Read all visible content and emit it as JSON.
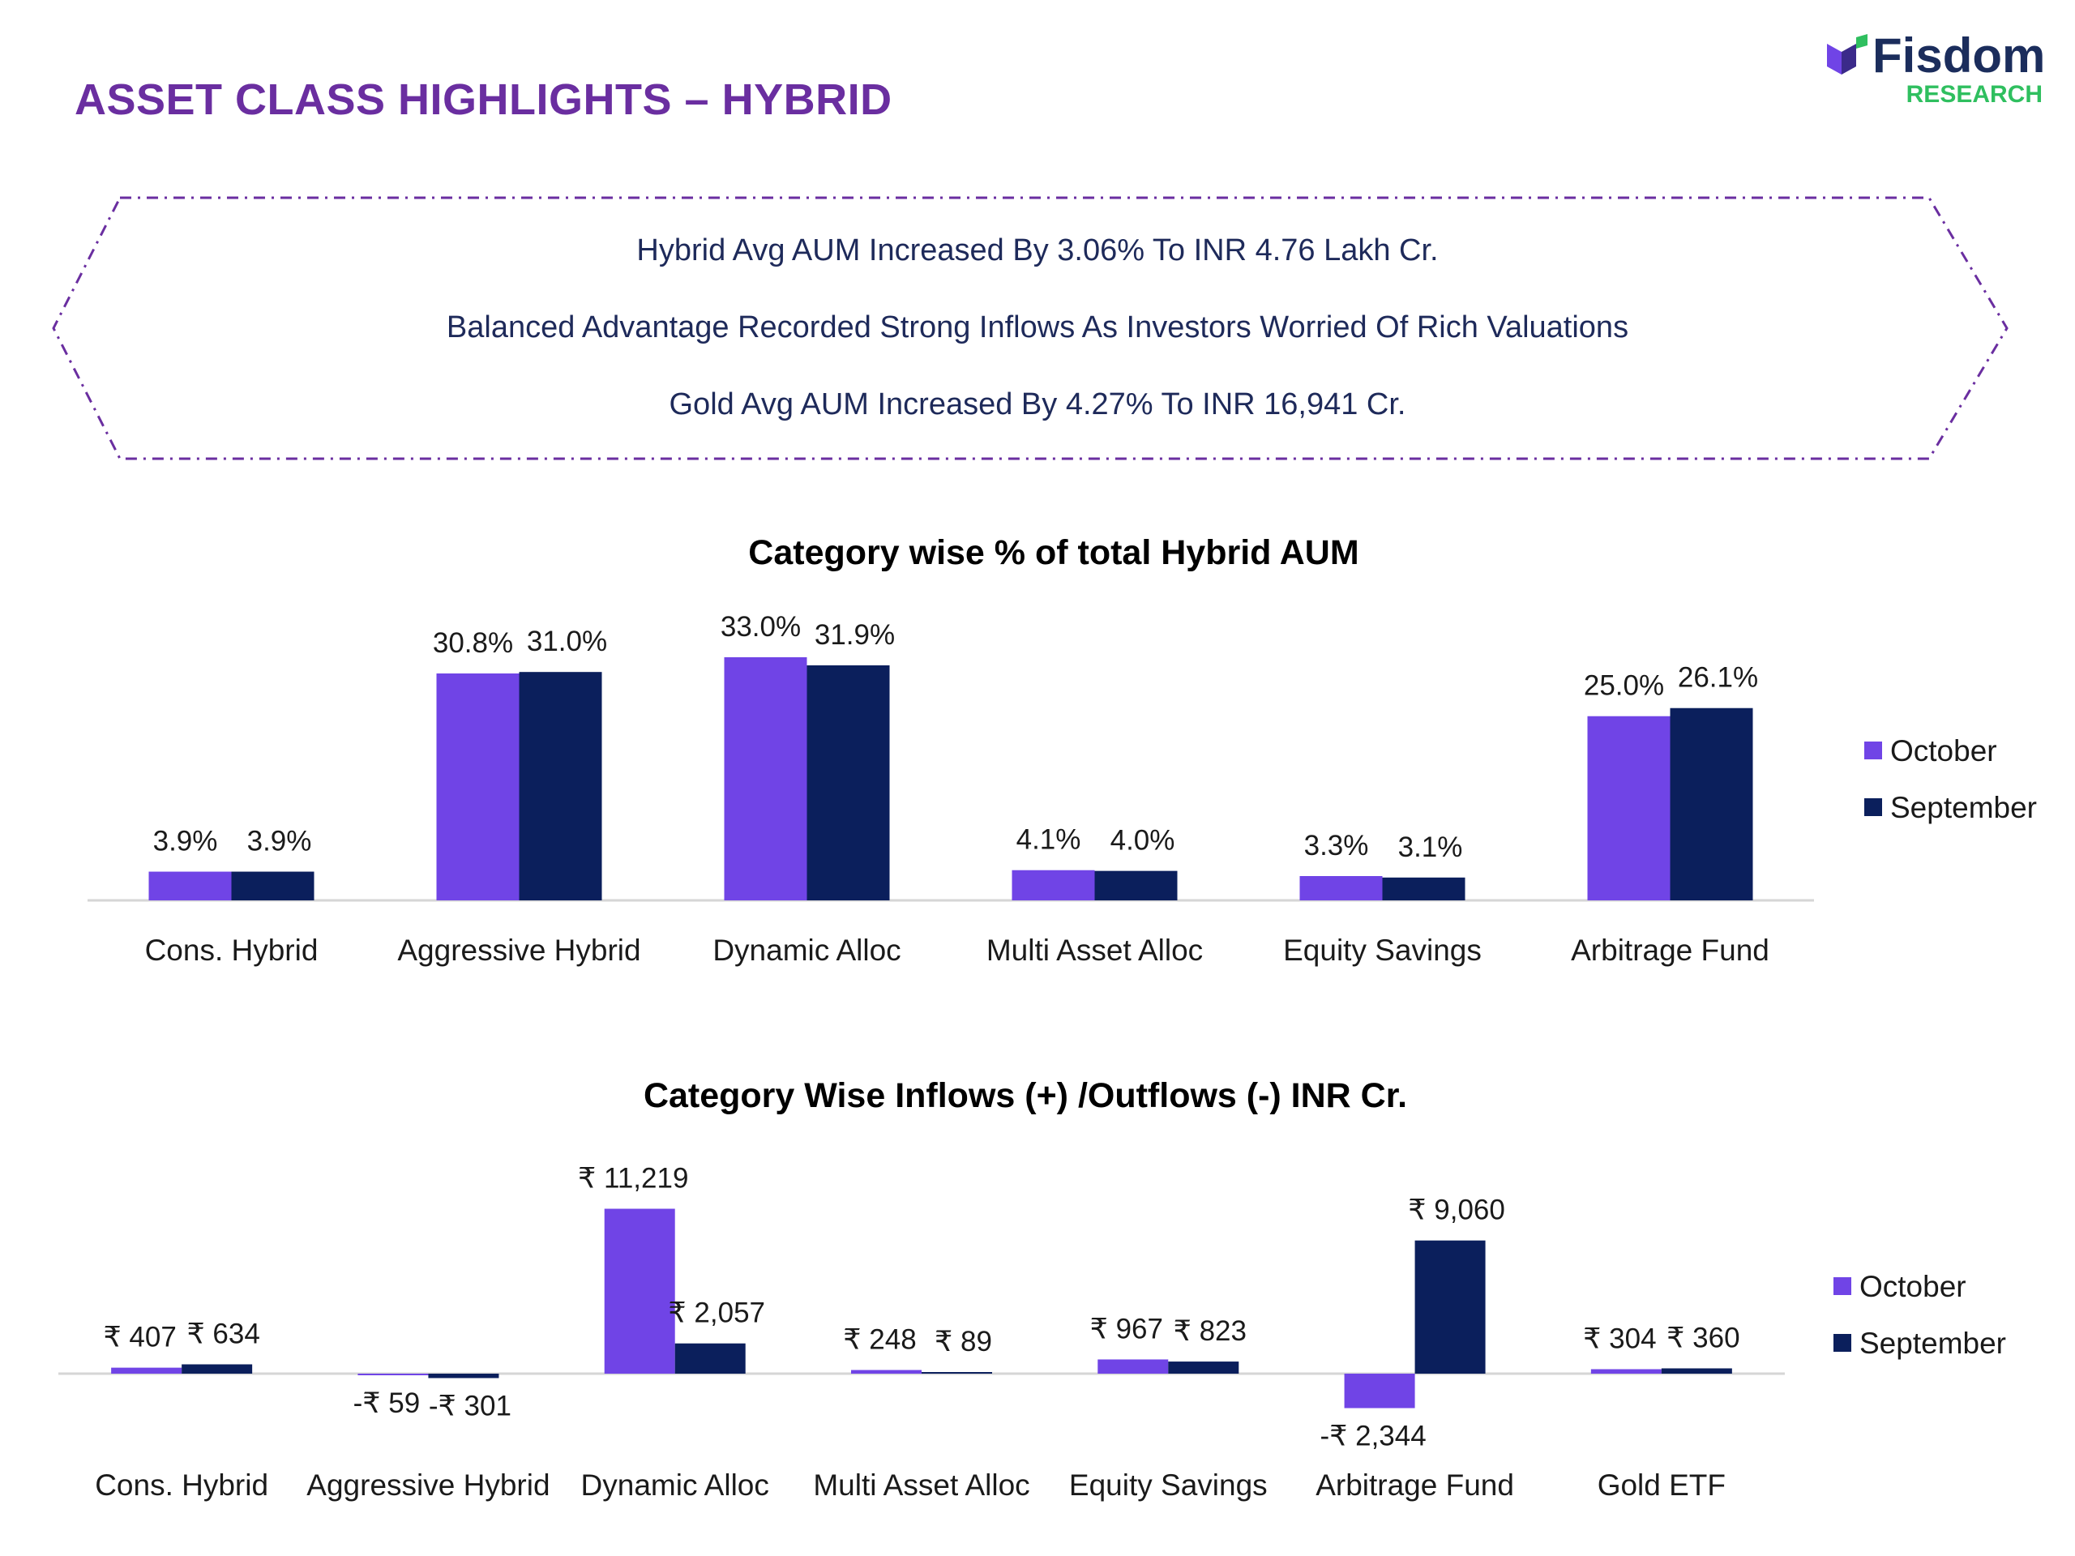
{
  "page": {
    "title": "ASSET CLASS HIGHLIGHTS – HYBRID",
    "logo_name": "Fisdom",
    "logo_sub": "RESEARCH"
  },
  "highlights": [
    "Hybrid Avg AUM Increased By 3.06% To INR 4.76 Lakh Cr.",
    "Balanced Advantage Recorded Strong Inflows As Investors Worried Of Rich Valuations",
    "Gold Avg AUM Increased By 4.27% To INR 16,941 Cr."
  ],
  "colors": {
    "title": "#6a2ea0",
    "october": "#7044e6",
    "september": "#0b1f5c",
    "banner_border": "#6a2ea0",
    "logo_green": "#2fbf5f"
  },
  "chart_data": [
    {
      "type": "bar",
      "title": "Category wise % of total Hybrid AUM",
      "categories": [
        "Cons. Hybrid",
        "Aggressive Hybrid",
        "Dynamic Alloc",
        "Multi Asset Alloc",
        "Equity Savings",
        "Arbitrage Fund"
      ],
      "series": [
        {
          "name": "October",
          "values": [
            3.9,
            30.8,
            33.0,
            4.1,
            3.3,
            25.0
          ],
          "labels": [
            "3.9%",
            "30.8%",
            "33.0%",
            "4.1%",
            "3.3%",
            "25.0%"
          ]
        },
        {
          "name": "September",
          "values": [
            3.9,
            31.0,
            31.9,
            4.0,
            3.1,
            26.1
          ],
          "labels": [
            "3.9%",
            "31.0%",
            "31.9%",
            "4.0%",
            "3.1%",
            "26.1%"
          ]
        }
      ],
      "ylim": [
        0,
        33
      ],
      "legend": "right",
      "grid": false
    },
    {
      "type": "bar",
      "title": "Category Wise Inflows (+) /Outflows (-) INR Cr.",
      "categories": [
        "Cons. Hybrid",
        "Aggressive Hybrid",
        "Dynamic Alloc",
        "Multi Asset Alloc",
        "Equity Savings",
        "Arbitrage Fund",
        "Gold ETF"
      ],
      "series": [
        {
          "name": "October",
          "values": [
            407,
            -59,
            11219,
            248,
            967,
            -2344,
            304
          ],
          "labels": [
            "₹ 407",
            "-₹ 59",
            "₹ 11,219",
            "₹ 248",
            "₹ 967",
            "-₹ 2,344",
            "₹ 304"
          ]
        },
        {
          "name": "September",
          "values": [
            634,
            -301,
            2057,
            89,
            823,
            9060,
            360
          ],
          "labels": [
            "₹ 634",
            "-₹ 301",
            "₹ 2,057",
            "₹ 89",
            "₹ 823",
            "₹ 9,060",
            "₹ 360"
          ]
        }
      ],
      "ylim": [
        -2344,
        11219
      ],
      "legend": "right",
      "grid": false
    }
  ]
}
